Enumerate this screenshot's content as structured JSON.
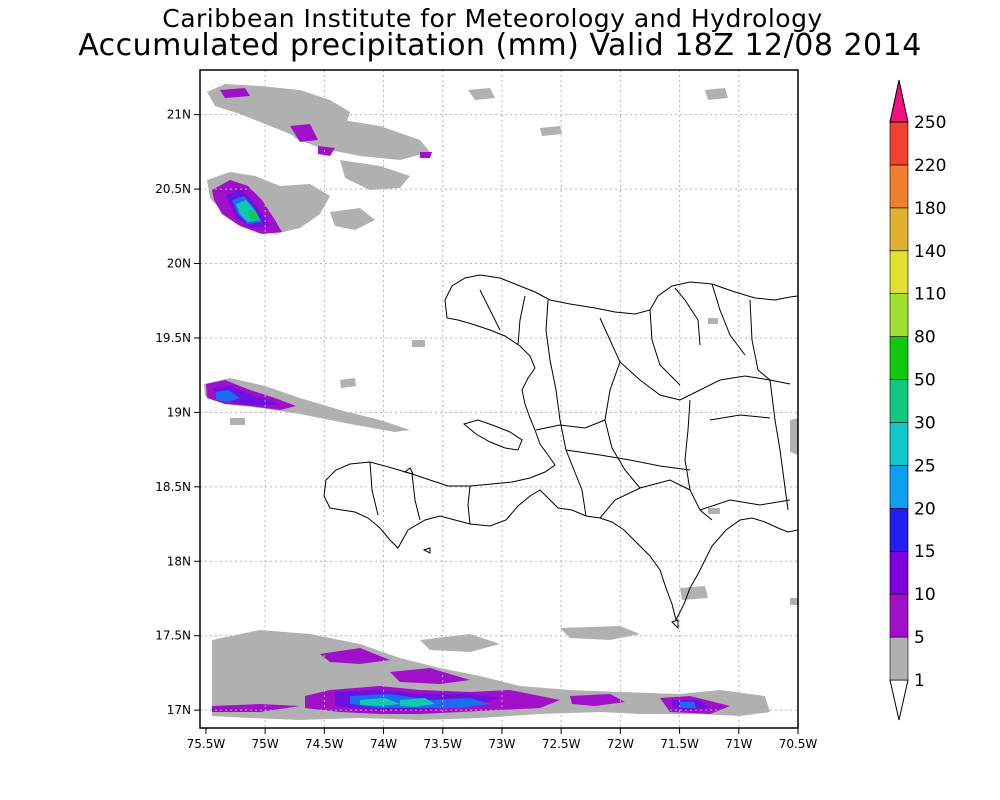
{
  "title": {
    "line1": "Caribbean Institute for Meteorology and Hydrology",
    "line2": "Accumulated precipitation (mm) Valid 18Z 12/08 2014"
  },
  "axes": {
    "lon_labels": [
      "75.5W",
      "75W",
      "74.5W",
      "74W",
      "73.5W",
      "73W",
      "72.5W",
      "72W",
      "71.5W",
      "71W",
      "70.5W"
    ],
    "lon_values": [
      -75.5,
      -75,
      -74.5,
      -74,
      -73.5,
      -73,
      -72.5,
      -72,
      -71.5,
      -71,
      -70.5
    ],
    "lat_labels": [
      "21N",
      "20.5N",
      "20N",
      "19.5N",
      "19N",
      "18.5N",
      "18N",
      "17.5N",
      "17N"
    ],
    "lat_values": [
      21,
      20.5,
      20,
      19.5,
      19,
      18.5,
      18,
      17.5,
      17
    ]
  },
  "colorbar": {
    "labels": [
      "1",
      "5",
      "10",
      "15",
      "20",
      "25",
      "30",
      "50",
      "80",
      "110",
      "140",
      "180",
      "220",
      "250"
    ],
    "colors": [
      "#b0b0b0",
      "#a010c8",
      "#8000e0",
      "#2020f0",
      "#0ea0f0",
      "#10c8c8",
      "#10c880",
      "#10c810",
      "#a0e030",
      "#e0e030",
      "#e0b030",
      "#f08030",
      "#f04030",
      "#f01080"
    ],
    "under_color": "#ffffff"
  },
  "colors": {
    "grid": "#b4b4b4",
    "land_outline": "#000000"
  }
}
